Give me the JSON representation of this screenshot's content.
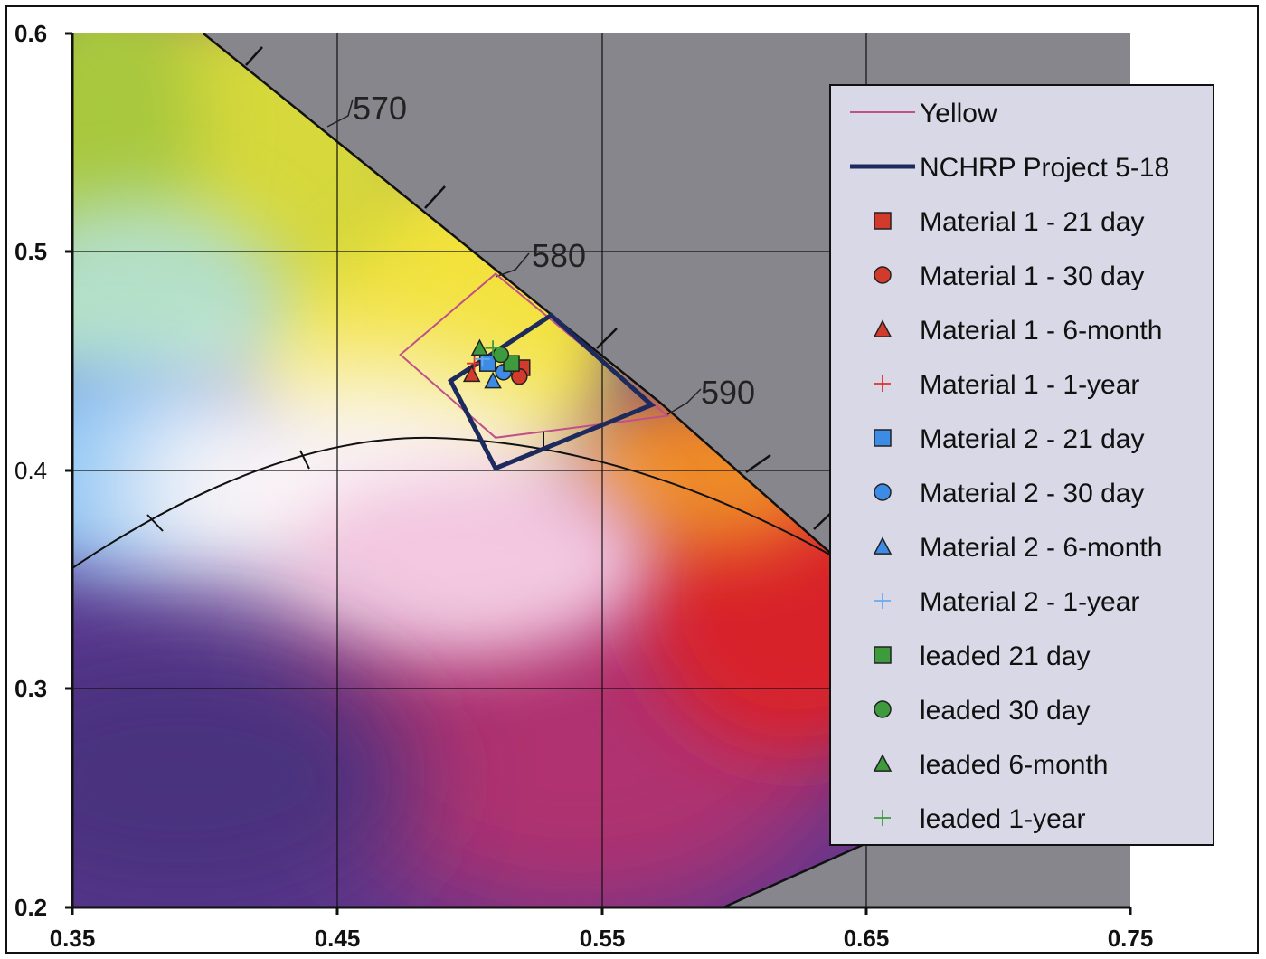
{
  "chart_data": {
    "type": "scatter",
    "title": "",
    "xlabel": "",
    "ylabel": "",
    "xlim": [
      0.35,
      0.75
    ],
    "ylim": [
      0.2,
      0.6
    ],
    "grid": true,
    "legend_position": "right",
    "x_ticks": [
      "0.35",
      "0.45",
      "0.55",
      "0.65",
      "0.75"
    ],
    "y_ticks": [
      "0.2",
      "0.3",
      "0.4",
      "0.5",
      "0.6"
    ],
    "wavelength_labels": [
      {
        "text": "570",
        "x": 0.45,
        "y": 0.55
      },
      {
        "text": "580",
        "x": 0.52,
        "y": 0.483
      },
      {
        "text": "590",
        "x": 0.587,
        "y": 0.418
      }
    ],
    "boundary_polygons": [
      {
        "name": "Yellow",
        "color": "#c0508a",
        "width": 2,
        "points": [
          [
            0.474,
            0.453
          ],
          [
            0.51,
            0.49
          ],
          [
            0.575,
            0.425
          ],
          [
            0.51,
            0.415
          ]
        ]
      },
      {
        "name": "NCHRP Project 5-18",
        "color": "#1c2a5e",
        "width": 5,
        "points": [
          [
            0.493,
            0.441
          ],
          [
            0.531,
            0.471
          ],
          [
            0.569,
            0.43
          ],
          [
            0.51,
            0.401
          ]
        ]
      }
    ],
    "series": [
      {
        "name": "Material 1 - 21 day",
        "marker": "square",
        "color": "#d23a2c",
        "x": [
          0.52
        ],
        "y": [
          0.447
        ]
      },
      {
        "name": "Material 1 - 30 day",
        "marker": "circle",
        "color": "#d23a2c",
        "x": [
          0.519
        ],
        "y": [
          0.443
        ]
      },
      {
        "name": "Material 1 - 6-month",
        "marker": "triangle",
        "color": "#d23a2c",
        "x": [
          0.501
        ],
        "y": [
          0.444
        ]
      },
      {
        "name": "Material 1 - 1-year",
        "marker": "plus",
        "color": "#e0302a",
        "x": [
          0.502
        ],
        "y": [
          0.449
        ]
      },
      {
        "name": "Material 2 - 21 day",
        "marker": "square",
        "color": "#3c8ce6",
        "x": [
          0.507
        ],
        "y": [
          0.449
        ]
      },
      {
        "name": "Material 2 - 30 day",
        "marker": "circle",
        "color": "#3c8ce6",
        "x": [
          0.513
        ],
        "y": [
          0.445
        ]
      },
      {
        "name": "Material 2 - 6-month",
        "marker": "triangle",
        "color": "#3c8ce6",
        "x": [
          0.509
        ],
        "y": [
          0.441
        ]
      },
      {
        "name": "Material 2 - 1-year",
        "marker": "plus",
        "color": "#6aa8ee",
        "x": [
          0.505
        ],
        "y": [
          0.451
        ]
      },
      {
        "name": "leaded 21 day",
        "marker": "square",
        "color": "#3d9a3d",
        "x": [
          0.516
        ],
        "y": [
          0.449
        ]
      },
      {
        "name": "leaded 30 day",
        "marker": "circle",
        "color": "#3d9a3d",
        "x": [
          0.512
        ],
        "y": [
          0.453
        ]
      },
      {
        "name": "leaded 6-month",
        "marker": "triangle",
        "color": "#3d9a3d",
        "x": [
          0.504
        ],
        "y": [
          0.456
        ]
      },
      {
        "name": "leaded 1-year",
        "marker": "plus",
        "color": "#3d9a3d",
        "x": [
          0.509
        ],
        "y": [
          0.456
        ]
      }
    ]
  }
}
